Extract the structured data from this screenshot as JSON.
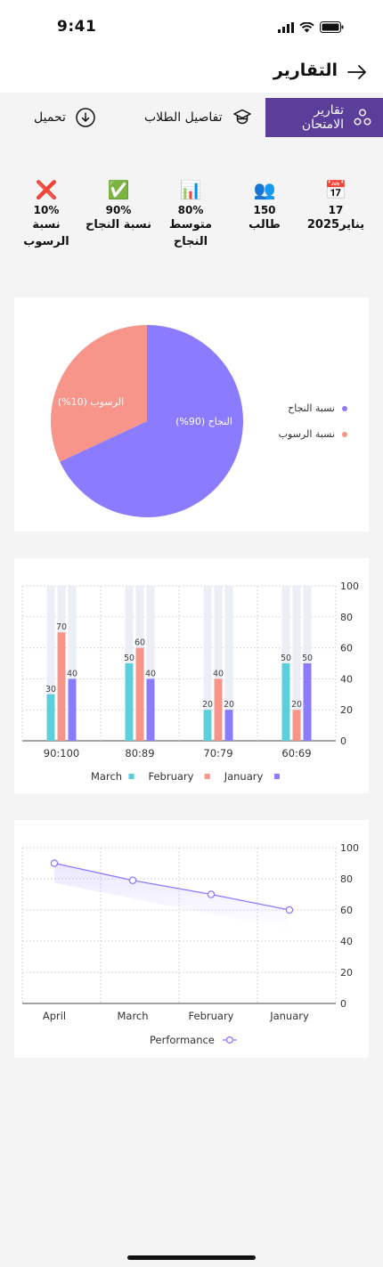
{
  "status": {
    "time": "9:41"
  },
  "header": {
    "title": "التقارير"
  },
  "tabs": [
    {
      "label": "تقارير الامتحان",
      "active": true,
      "icon": "nodes-icon"
    },
    {
      "label": "تفاصيل الطلاب",
      "active": false,
      "icon": "graduation-cap-icon"
    },
    {
      "label": "تحميل",
      "active": false,
      "icon": "download-icon"
    }
  ],
  "stats": [
    {
      "icon": "📅",
      "icon_name": "calendar-icon",
      "value": "17",
      "label": "يناير2025"
    },
    {
      "icon": "👥",
      "icon_name": "people-icon",
      "value": "150",
      "label": "طالب"
    },
    {
      "icon": "📊",
      "icon_name": "bar-chart-icon",
      "value": "80%",
      "label": "متوسط النجاح"
    },
    {
      "icon": "✅",
      "icon_name": "check-icon",
      "value": "90%",
      "label": "نسبة النجاح"
    },
    {
      "icon": "❌",
      "icon_name": "cross-icon",
      "value": "10%",
      "label": "نسبة الرسوب"
    }
  ],
  "pie": {
    "slices": [
      {
        "label": "النجاح (90%)",
        "legend": "نسبة النجاح",
        "value": 90,
        "color": "#8b7bff"
      },
      {
        "label": "الرسوب (10%)",
        "legend": "نسبة الرسوب",
        "value": 10,
        "color": "#f8958a"
      }
    ]
  },
  "chart_data": [
    {
      "type": "pie",
      "categories": [
        "النجاح (90%)",
        "الرسوب (10%)"
      ],
      "values": [
        90,
        10
      ],
      "legend": [
        "نسبة النجاح",
        "نسبة الرسوب"
      ],
      "colors": [
        "#8b7bff",
        "#f8958a"
      ]
    },
    {
      "type": "bar",
      "categories": [
        "90:100",
        "80:89",
        "70:79",
        "60:69"
      ],
      "series": [
        {
          "name": "March",
          "color": "#5ccfdd",
          "values": [
            30,
            50,
            20,
            50
          ]
        },
        {
          "name": "February",
          "color": "#f8958a",
          "values": [
            70,
            60,
            40,
            20
          ]
        },
        {
          "name": "January",
          "color": "#8b7bff",
          "values": [
            40,
            40,
            20,
            50
          ]
        }
      ],
      "yticks": [
        "0",
        "20",
        "40",
        "60",
        "80",
        "100"
      ],
      "ylim": [
        0,
        100
      ],
      "grid": true,
      "legend_position": "bottom"
    },
    {
      "type": "line",
      "categories": [
        "April",
        "March",
        "February",
        "January"
      ],
      "series": [
        {
          "name": "Performance",
          "color": "#8b7bff",
          "values": [
            90,
            79,
            70,
            60
          ]
        }
      ],
      "yticks": [
        "0",
        "20",
        "40",
        "60",
        "80",
        "100"
      ],
      "ylim": [
        0,
        100
      ],
      "grid": true,
      "legend_position": "bottom"
    }
  ]
}
